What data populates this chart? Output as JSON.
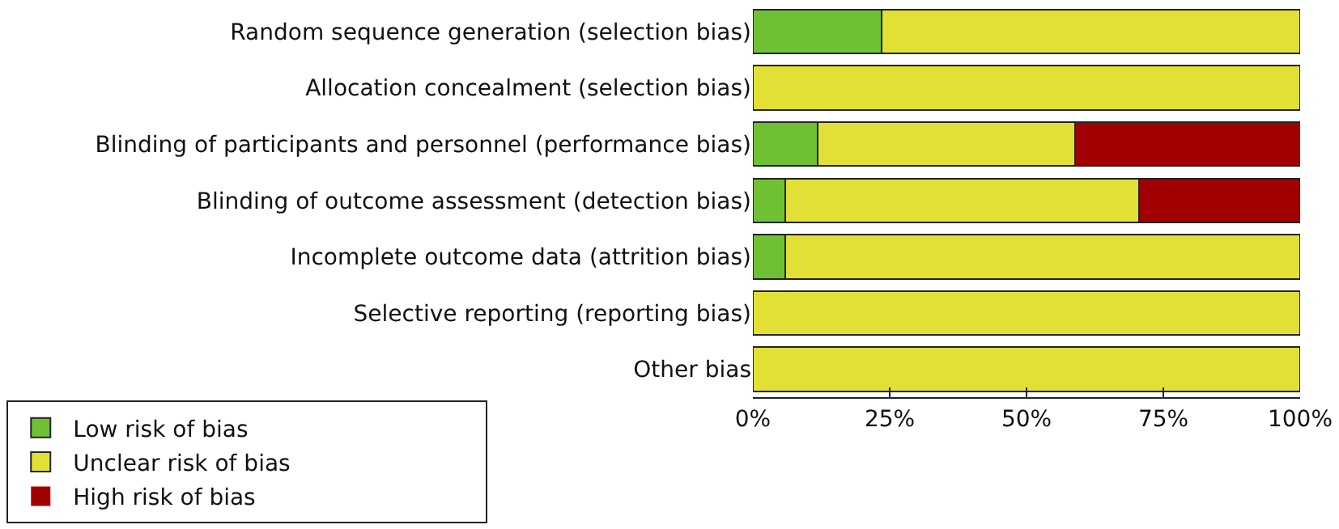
{
  "chart_data": {
    "type": "bar",
    "orientation": "horizontal",
    "stacked": true,
    "categories": [
      "Random sequence generation (selection bias)",
      "Allocation concealment (selection bias)",
      "Blinding of participants and personnel (performance bias)",
      "Blinding of outcome assessment (detection bias)",
      "Incomplete outcome data (attrition bias)",
      "Selective reporting (reporting bias)",
      "Other bias"
    ],
    "series": [
      {
        "name": "Low risk of bias",
        "color": "#6fc133",
        "values": [
          23.5,
          0,
          11.8,
          5.9,
          5.9,
          0,
          0
        ]
      },
      {
        "name": "Unclear risk of bias",
        "color": "#e2e035",
        "values": [
          76.5,
          100,
          47.1,
          64.7,
          94.1,
          100,
          100
        ]
      },
      {
        "name": "High risk of bias",
        "color": "#a10000",
        "values": [
          0,
          0,
          41.2,
          29.4,
          0,
          0,
          0
        ]
      }
    ],
    "xlim": [
      0,
      100
    ],
    "xticks": [
      {
        "value": 0,
        "label": "0%"
      },
      {
        "value": 25,
        "label": "25%"
      },
      {
        "value": 50,
        "label": "50%"
      },
      {
        "value": 75,
        "label": "75%"
      },
      {
        "value": 100,
        "label": "100%"
      }
    ],
    "grid": false,
    "legend": "bottom"
  }
}
